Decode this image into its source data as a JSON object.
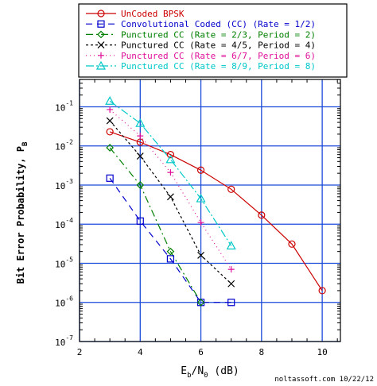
{
  "chart_data": {
    "type": "line",
    "title": "",
    "xlabel_main": "E",
    "xlabel_sub": "b",
    "xlabel_mid": "/N",
    "xlabel_sub2": "0",
    "xlabel_unit": " (dB)",
    "ylabel_main": "Bit Error Probability, P",
    "ylabel_sub": "B",
    "xlim": [
      2,
      10.6
    ],
    "ylim_exp": [
      -7,
      -0.3
    ],
    "log_y": true,
    "grid": true,
    "legend_position": "top",
    "x_ticks": [
      "2",
      "4",
      "6",
      "8",
      "10"
    ],
    "y_tick_exps": [
      "-1",
      "-2",
      "-3",
      "-4",
      "-5",
      "-6",
      "-7"
    ],
    "y_tick_base": "10",
    "series": [
      {
        "name": "UnCoded BPSK",
        "color": "#cc0000",
        "dash": "",
        "marker": "circle",
        "x": [
          3,
          4,
          5,
          6,
          7,
          8,
          9,
          10
        ],
        "y": [
          0.023,
          0.0125,
          0.006,
          0.0024,
          0.00078,
          0.00017,
          3.1e-05,
          2e-06
        ]
      },
      {
        "name": "Convolutional Coded (CC) (Rate = 1/2)",
        "color": "#0000cc",
        "dash": "8,6",
        "marker": "square",
        "x": [
          3,
          4,
          5,
          6,
          7
        ],
        "y": [
          0.0015,
          0.00012,
          1.3e-05,
          1e-06,
          1e-06
        ]
      },
      {
        "name": "Punctured CC (Rate = 2/3, Period = 2)",
        "color": "#008000",
        "dash": "9,4,2,4",
        "marker": "diamond",
        "x": [
          3,
          4,
          5,
          6
        ],
        "y": [
          0.009,
          0.001,
          2e-05,
          1e-06
        ]
      },
      {
        "name": "Punctured CC (Rate = 4/5, Period = 4)",
        "color": "#000000",
        "dash": "3,3",
        "marker": "x",
        "x": [
          3,
          4,
          5,
          6,
          7
        ],
        "y": [
          0.044,
          0.0055,
          0.0005,
          1.6e-05,
          3e-06
        ]
      },
      {
        "name": "Punctured CC (Rate = 6/7, Period = 6)",
        "color": "#e0109a",
        "dash": "1,4",
        "marker": "plus",
        "x": [
          3,
          4,
          5,
          6,
          7
        ],
        "y": [
          0.085,
          0.018,
          0.0021,
          0.00011,
          7e-06
        ]
      },
      {
        "name": "Punctured CC (Rate = 8/9, Period = 8)",
        "color": "#00c8c8",
        "dash": "10,3,2,3",
        "marker": "triangle",
        "x": [
          3,
          4,
          5,
          6,
          7
        ],
        "y": [
          0.14,
          0.038,
          0.0045,
          0.00045,
          2.8e-05
        ]
      }
    ]
  },
  "credit": "noltassoft.com 10/22/12"
}
